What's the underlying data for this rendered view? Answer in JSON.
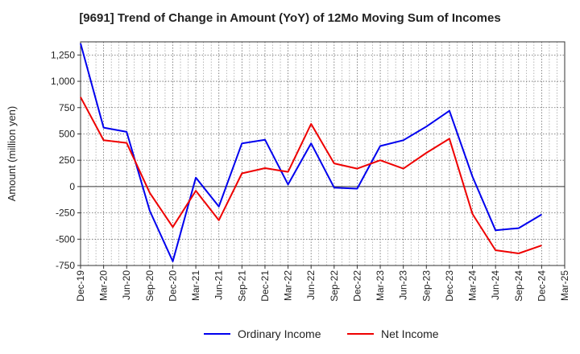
{
  "chart_data": {
    "type": "line",
    "title": "[9691]  Trend of Change in Amount (YoY) of 12Mo Moving Sum of Incomes",
    "ylabel": "Amount (million yen)",
    "xlabel": "",
    "x": [
      "Dec-19",
      "Mar-20",
      "Jun-20",
      "Sep-20",
      "Dec-20",
      "Mar-21",
      "Jun-21",
      "Sep-21",
      "Dec-21",
      "Mar-22",
      "Jun-22",
      "Sep-22",
      "Dec-22",
      "Mar-23",
      "Jun-23",
      "Sep-23",
      "Dec-23",
      "Mar-24",
      "Jun-24",
      "Sep-24",
      "Dec-24",
      "Mar-25"
    ],
    "ylim": [
      -750,
      1375
    ],
    "yticks": [
      -750,
      -500,
      -250,
      0,
      250,
      500,
      750,
      1000,
      1250
    ],
    "ytick_labels": [
      "-750",
      "-500",
      "-250",
      "0",
      "250",
      "500",
      "750",
      "1,000",
      "1,250"
    ],
    "grid": true,
    "legend_position": "bottom",
    "series": [
      {
        "name": "Ordinary Income",
        "color": "#0000ee",
        "values": [
          1360,
          560,
          520,
          -230,
          -710,
          85,
          -190,
          410,
          445,
          20,
          410,
          -10,
          -20,
          385,
          440,
          570,
          720,
          95,
          -415,
          -395,
          -265,
          null
        ]
      },
      {
        "name": "Net Income",
        "color": "#ee0000",
        "values": [
          850,
          440,
          415,
          -60,
          -385,
          -40,
          -320,
          125,
          175,
          140,
          595,
          220,
          170,
          250,
          170,
          320,
          455,
          -260,
          -605,
          -635,
          -560,
          null
        ]
      }
    ]
  }
}
